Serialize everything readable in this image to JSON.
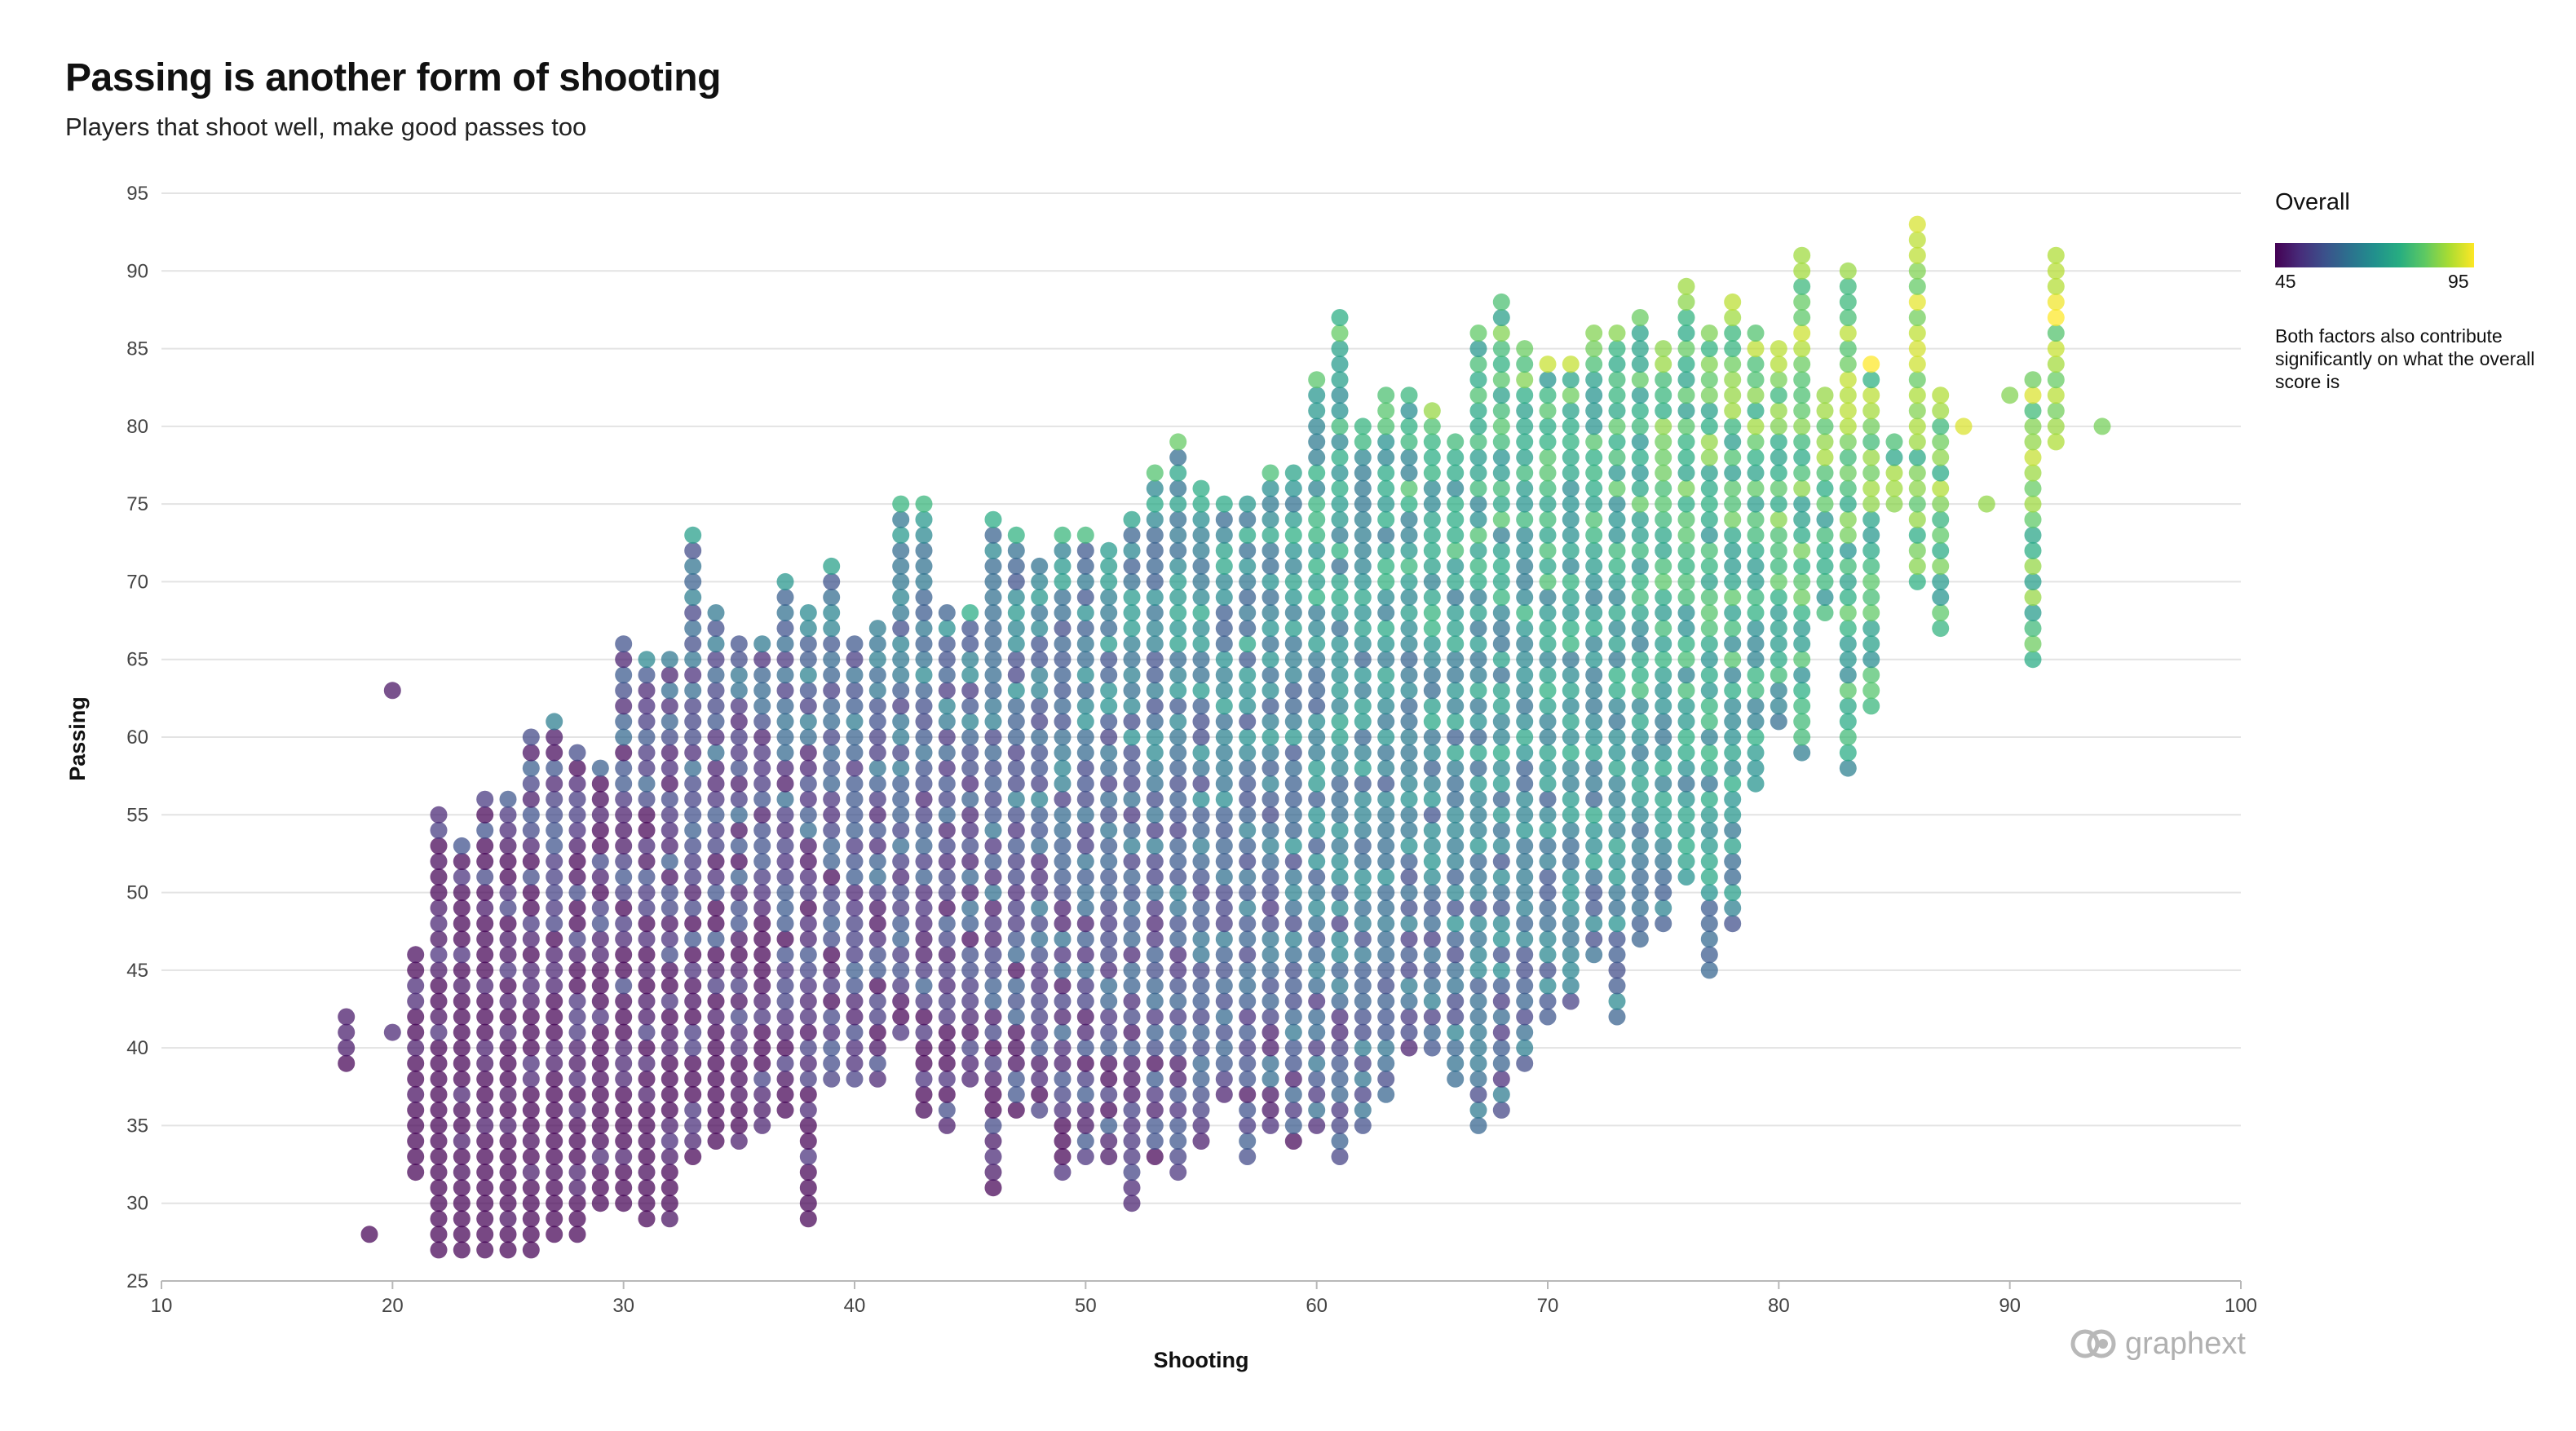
{
  "header": {
    "title": "Passing is another form of shooting",
    "subtitle": "Players that shoot well, make good passes too"
  },
  "legend": {
    "title": "Overall",
    "min_label": "45",
    "max_label": "95",
    "note": "Both factors also contribute significantly on what the overall score is",
    "colors": [
      "#440154",
      "#472c7a",
      "#3b518b",
      "#2c718e",
      "#21908d",
      "#27ad81",
      "#5cc863",
      "#aadc32",
      "#fde725"
    ]
  },
  "brand": {
    "name": "graphext",
    "icon": "graphext-logo-icon"
  },
  "chart_data": {
    "type": "scatter",
    "xlabel": "Shooting",
    "ylabel": "Passing",
    "xlim": [
      10,
      100
    ],
    "ylim": [
      25,
      95
    ],
    "xticks": [
      10,
      20,
      30,
      40,
      50,
      60,
      70,
      80,
      90,
      100
    ],
    "yticks": [
      25,
      30,
      35,
      40,
      45,
      50,
      55,
      60,
      65,
      70,
      75,
      80,
      85,
      90,
      95
    ],
    "grid": "horizontal",
    "legend_position": "right",
    "color_by": "Overall",
    "color_range": [
      45,
      95
    ],
    "note": "points are drawn at integer Shooting/Passing values; each row is [Shooting, Passing low, Passing high]; individual point colors follow Overall (dense core approximated)",
    "columns": [
      [
        18,
        39,
        42
      ],
      [
        19,
        28,
        28
      ],
      [
        20,
        41,
        41
      ],
      [
        20,
        63,
        63
      ],
      [
        21,
        32,
        46
      ],
      [
        22,
        27,
        55
      ],
      [
        23,
        27,
        53
      ],
      [
        24,
        27,
        56
      ],
      [
        25,
        27,
        56
      ],
      [
        26,
        27,
        60
      ],
      [
        27,
        28,
        61
      ],
      [
        28,
        28,
        59
      ],
      [
        29,
        30,
        58
      ],
      [
        30,
        30,
        66
      ],
      [
        31,
        29,
        65
      ],
      [
        32,
        29,
        65
      ],
      [
        33,
        33,
        73
      ],
      [
        34,
        34,
        68
      ],
      [
        35,
        34,
        66
      ],
      [
        36,
        35,
        66
      ],
      [
        37,
        36,
        70
      ],
      [
        38,
        29,
        68
      ],
      [
        39,
        38,
        71
      ],
      [
        40,
        38,
        66
      ],
      [
        41,
        38,
        67
      ],
      [
        42,
        41,
        75
      ],
      [
        43,
        36,
        75
      ],
      [
        44,
        35,
        68
      ],
      [
        45,
        38,
        68
      ],
      [
        46,
        31,
        74
      ],
      [
        47,
        36,
        73
      ],
      [
        48,
        36,
        71
      ],
      [
        49,
        32,
        73
      ],
      [
        50,
        33,
        73
      ],
      [
        51,
        33,
        72
      ],
      [
        52,
        30,
        74
      ],
      [
        53,
        33,
        77
      ],
      [
        54,
        32,
        79
      ],
      [
        55,
        34,
        76
      ],
      [
        56,
        37,
        75
      ],
      [
        57,
        33,
        75
      ],
      [
        58,
        35,
        77
      ],
      [
        59,
        34,
        77
      ],
      [
        60,
        35,
        83
      ],
      [
        61,
        33,
        87
      ],
      [
        62,
        35,
        80
      ],
      [
        63,
        37,
        82
      ],
      [
        64,
        40,
        82
      ],
      [
        65,
        40,
        81
      ],
      [
        66,
        38,
        79
      ],
      [
        67,
        35,
        86
      ],
      [
        68,
        36,
        88
      ],
      [
        69,
        39,
        85
      ],
      [
        70,
        42,
        84
      ],
      [
        71,
        43,
        84
      ],
      [
        72,
        46,
        86
      ],
      [
        73,
        42,
        86
      ],
      [
        74,
        47,
        87
      ],
      [
        75,
        48,
        85
      ],
      [
        76,
        51,
        89
      ],
      [
        77,
        45,
        86
      ],
      [
        78,
        48,
        88
      ],
      [
        79,
        57,
        86
      ],
      [
        80,
        61,
        85
      ],
      [
        81,
        59,
        91
      ],
      [
        82,
        68,
        82
      ],
      [
        83,
        58,
        90
      ],
      [
        84,
        62,
        84
      ],
      [
        85,
        75,
        79
      ],
      [
        86,
        70,
        93
      ],
      [
        87,
        67,
        82
      ],
      [
        88,
        80,
        80
      ],
      [
        89,
        75,
        75
      ],
      [
        90,
        82,
        82
      ],
      [
        91,
        65,
        83
      ],
      [
        92,
        79,
        91
      ],
      [
        94,
        80,
        80
      ]
    ]
  }
}
